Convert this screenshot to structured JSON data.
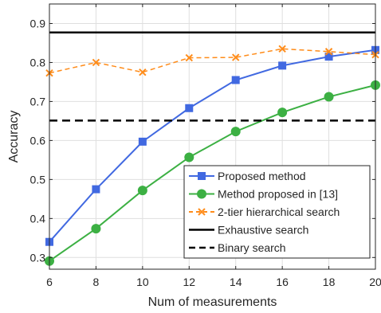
{
  "chart_data": {
    "type": "line",
    "xlabel": "Num of measurements",
    "ylabel": "Accuracy",
    "xlim": [
      6,
      20
    ],
    "ylim": [
      0.27,
      0.95
    ],
    "xticks": [
      6,
      8,
      10,
      12,
      14,
      16,
      18,
      20
    ],
    "yticks": [
      0.3,
      0.4,
      0.5,
      0.6,
      0.7,
      0.8,
      0.9
    ],
    "xtick_labels": [
      "6",
      "8",
      "10",
      "12",
      "14",
      "16",
      "18",
      "20"
    ],
    "ytick_labels": [
      "0.3",
      "0.4",
      "0.5",
      "0.6",
      "0.7",
      "0.8",
      "0.9"
    ],
    "grid": true,
    "legend_position": "bottom-right",
    "x": [
      6,
      8,
      10,
      12,
      14,
      16,
      18,
      20
    ],
    "series": [
      {
        "name": "Proposed method",
        "values": [
          0.34,
          0.475,
          0.597,
          0.683,
          0.755,
          0.792,
          0.815,
          0.832
        ],
        "color": "#4169E1",
        "line": "solid",
        "marker": "square"
      },
      {
        "name": "Method proposed in [13]",
        "values": [
          0.291,
          0.374,
          0.472,
          0.557,
          0.623,
          0.672,
          0.712,
          0.742
        ],
        "color": "#3CB043",
        "line": "solid",
        "marker": "circle"
      },
      {
        "name": "2-tier hierarchical search",
        "values": [
          0.773,
          0.8,
          0.775,
          0.812,
          0.813,
          0.835,
          0.828,
          0.82
        ],
        "color": "#FF8C1A",
        "line": "dashed",
        "marker": "x"
      },
      {
        "name": "Exhaustive search",
        "values": [
          0.877,
          0.877,
          0.877,
          0.877,
          0.877,
          0.877,
          0.877,
          0.877
        ],
        "color": "#000000",
        "line": "solid",
        "marker": "none"
      },
      {
        "name": "Binary search",
        "values": [
          0.651,
          0.651,
          0.651,
          0.651,
          0.651,
          0.651,
          0.651,
          0.651
        ],
        "color": "#000000",
        "line": "dashed",
        "marker": "none"
      }
    ]
  }
}
